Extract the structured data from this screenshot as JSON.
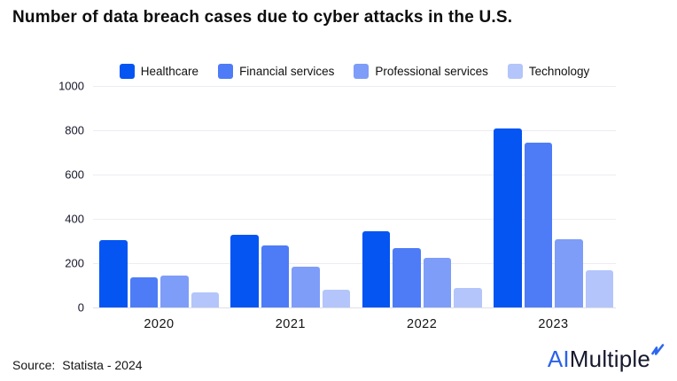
{
  "title": "Number of data breach cases due to cyber attacks in the U.S.",
  "source": {
    "label": "Source:",
    "value": "Statista - 2024"
  },
  "logo": {
    "part1": "AI",
    "part2": "Multiple",
    "part1_color": "#2a62e9",
    "part2_color": "#16182c",
    "check_icon": "spark-check-icon",
    "check_color": "#2d66ee"
  },
  "colors": {
    "grid": "#ededf1",
    "axis": "#e0e0e6",
    "text": "#111111"
  },
  "chart_data": {
    "type": "bar",
    "title": "Number of data breach cases due to cyber attacks in the U.S.",
    "categories": [
      "2020",
      "2021",
      "2022",
      "2023"
    ],
    "series": [
      {
        "name": "Healthcare",
        "color": "#0455f2",
        "values": [
          306,
          330,
          344,
          809
        ]
      },
      {
        "name": "Financial services",
        "color": "#4e7cf7",
        "values": [
          138,
          279,
          268,
          744
        ]
      },
      {
        "name": "Professional services",
        "color": "#7e9df8",
        "values": [
          144,
          184,
          223,
          308
        ]
      },
      {
        "name": "Technology",
        "color": "#b3c5fa",
        "values": [
          68,
          79,
          88,
          167
        ]
      }
    ],
    "xlabel": "",
    "ylabel": "",
    "ylim": [
      0,
      1000
    ],
    "yticks": [
      0,
      200,
      400,
      600,
      800,
      1000
    ],
    "grid": true,
    "legend_position": "top"
  }
}
